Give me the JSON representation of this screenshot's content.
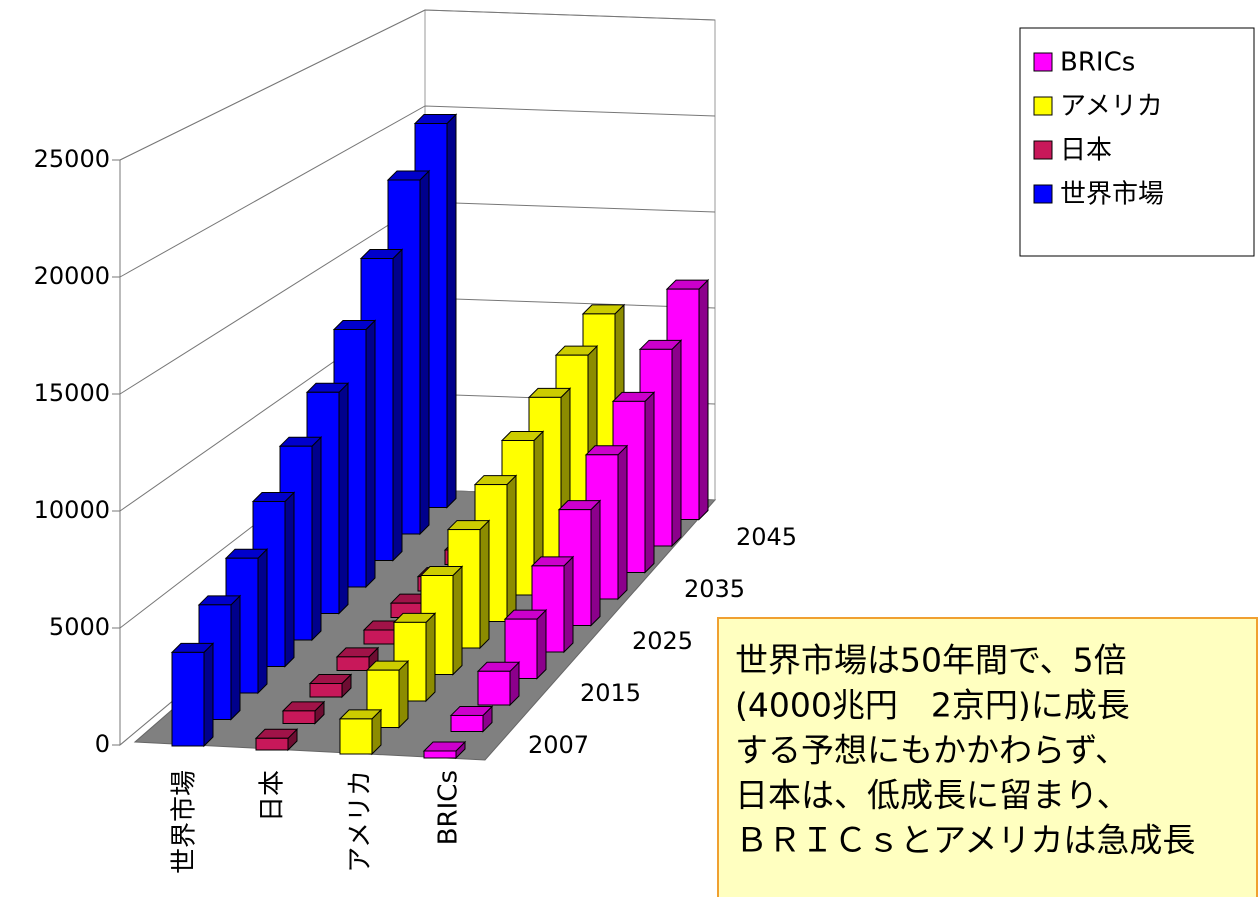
{
  "chart_data": {
    "type": "bar3d",
    "categories": [
      "2007",
      null,
      "2015",
      null,
      "2025",
      null,
      "2035",
      null,
      "2045",
      null
    ],
    "series": [
      {
        "name": "世界市場",
        "color": "#0000ff",
        "values": [
          4000,
          5000,
          6000,
          7500,
          9000,
          10500,
          12500,
          15000,
          18000,
          20000
        ]
      },
      {
        "name": "日本",
        "color": "#c8185a",
        "values": [
          500,
          550,
          600,
          620,
          650,
          680,
          700,
          720,
          750,
          780
        ]
      },
      {
        "name": "アメリカ",
        "color": "#ffff00",
        "values": [
          1500,
          2500,
          3500,
          4500,
          5500,
          6500,
          7500,
          8500,
          9500,
          10500
        ]
      },
      {
        "name": "BRICs",
        "color": "#ff00ff",
        "values": [
          300,
          700,
          1500,
          2700,
          4000,
          5500,
          7000,
          8500,
          10000,
          12000
        ]
      }
    ],
    "ylim": [
      0,
      25000
    ],
    "yticks": [
      0,
      5000,
      10000,
      15000,
      20000,
      25000
    ],
    "grid": true,
    "legend": "top-right",
    "annotation": [
      "世界市場は50年間で、5倍",
      "(4000兆円　2京円)に成長",
      "する予想にもかかわらず、",
      "日本は、低成長に留まり、",
      "ＢＲＩＣｓとアメリカは急成長"
    ]
  }
}
